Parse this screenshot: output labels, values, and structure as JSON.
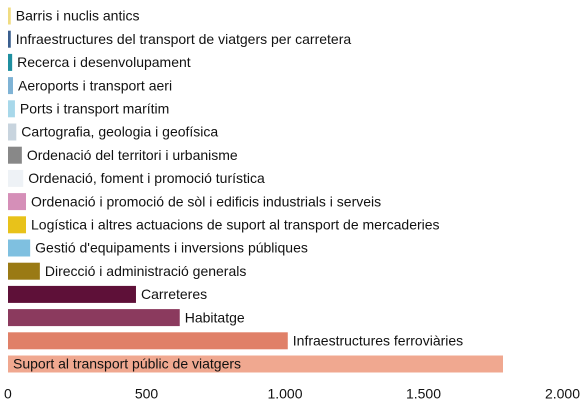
{
  "chart_data": {
    "type": "bar",
    "orientation": "horizontal",
    "categories": [
      "Barris i nuclis antics",
      "Infraestructures del transport de viatgers per carretera",
      "Recerca i desenvolupament",
      "Aeroports i transport aeri",
      "Ports i transport marítim",
      "Cartografia, geologia i geofísica",
      "Ordenació del territori i urbanisme",
      "Ordenació, foment i promoció turística",
      "Ordenació i promoció de sòl i edificis industrials i serveis",
      "Logística i altres actuacions de suport al transport de mercaderies",
      "Gestió d'equipaments i inversions públiques",
      "Direcció i administració generals",
      "Carreteres",
      "Habitatge",
      "Infraestructures ferroviàries",
      "Suport al transport públic de viatgers"
    ],
    "values": [
      10,
      10,
      15,
      18,
      25,
      30,
      50,
      55,
      65,
      65,
      80,
      115,
      462,
      620,
      1010,
      1787
    ],
    "colors": [
      "#f0dc82",
      "#3a5f8f",
      "#1f8fa0",
      "#7fb3d5",
      "#a8d8ea",
      "#c8d4de",
      "#888888",
      "#eef2f6",
      "#d58fb8",
      "#e8c21a",
      "#7fc0e0",
      "#9a7a14",
      "#5e1038",
      "#8b3a5e",
      "#e08068",
      "#f0a890"
    ],
    "xlim": [
      0,
      2000
    ],
    "xticks": [
      0,
      500,
      {
        "value": 1000,
        "label": "1.000"
      },
      {
        "value": 1500,
        "label": "1.500"
      },
      {
        "value": 2000,
        "label": "2.000"
      }
    ],
    "grid": false
  }
}
